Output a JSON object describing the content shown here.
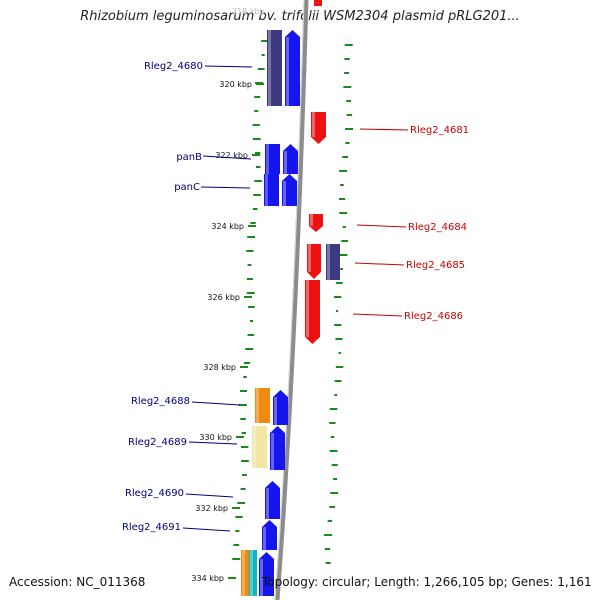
{
  "title": "Rhizobium leguminosarum bv. trifolii WSM2304 plasmid pRLG201...",
  "top_tick_partial": "318 kbp",
  "footer": {
    "accession": "Accession: NC_011368",
    "topology": "Topology: circular; Length: 1,266,105 bp; Genes: 1,161"
  },
  "ruler": [
    {
      "label": "320 kbp"
    },
    {
      "label": "322 kbp"
    },
    {
      "label": "324 kbp"
    },
    {
      "label": "326 kbp"
    },
    {
      "label": "328 kbp"
    },
    {
      "label": "330 kbp"
    },
    {
      "label": "332 kbp"
    },
    {
      "label": "334 kbp"
    }
  ],
  "genes": [
    {
      "label": "Rleg2_4680",
      "strand": "left",
      "color": "#000080"
    },
    {
      "label": "panB",
      "strand": "left",
      "color": "#000080"
    },
    {
      "label": "panC",
      "strand": "left",
      "color": "#000080"
    },
    {
      "label": "Rleg2_4688",
      "strand": "left",
      "color": "#000080"
    },
    {
      "label": "Rleg2_4689",
      "strand": "left",
      "color": "#000080"
    },
    {
      "label": "Rleg2_4690",
      "strand": "left",
      "color": "#000080"
    },
    {
      "label": "Rleg2_4691",
      "strand": "left",
      "color": "#000080"
    },
    {
      "label": "Rleg2_4681",
      "strand": "right",
      "color": "#cc0000"
    },
    {
      "label": "Rleg2_4684",
      "strand": "right",
      "color": "#cc0000"
    },
    {
      "label": "Rleg2_4685",
      "strand": "right",
      "color": "#cc0000"
    },
    {
      "label": "Rleg2_4686",
      "strand": "right",
      "color": "#cc0000"
    }
  ],
  "colors": {
    "forward_cds": "#1515ee",
    "reverse_cds": "#ee1111",
    "dark_cds": "#3c3a80",
    "orange_cds": "#f08a10",
    "teal_cds": "#10b7c0",
    "pale_cds": "#f2e6a4",
    "backbone": "#8c8c8c",
    "gc_ticks": "#1a8a1a",
    "left_label": "#000080",
    "right_label": "#cc0000"
  }
}
